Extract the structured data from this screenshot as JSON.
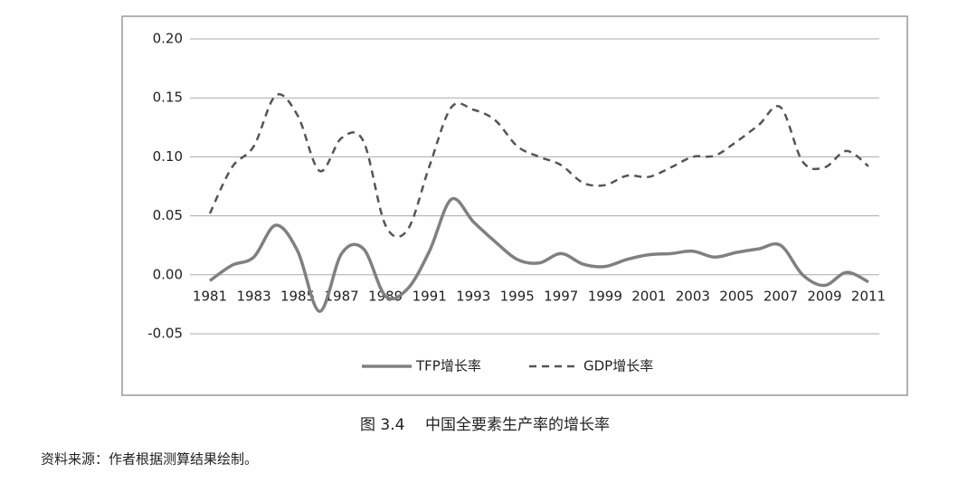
{
  "chart_data": {
    "type": "line",
    "figure_label": "图 3.4",
    "title": "中国全要素生产率的增长率",
    "source_note": "资料来源：作者根据测算结果绘制。",
    "categories": [
      "1981",
      null,
      "1983",
      null,
      "1985",
      null,
      "1987",
      null,
      "1989",
      null,
      "1991",
      null,
      "1993",
      null,
      "1995",
      null,
      "1997",
      null,
      "1999",
      null,
      "2001",
      null,
      "2003",
      null,
      "2005",
      null,
      "2007",
      null,
      "2009",
      null,
      "2011"
    ],
    "series": [
      {
        "name": "TFP增长率",
        "color": "#808080",
        "dash": "solid",
        "values": [
          -0.005,
          0.008,
          0.015,
          0.042,
          0.02,
          -0.031,
          0.018,
          0.022,
          -0.018,
          -0.012,
          0.02,
          0.064,
          0.045,
          0.028,
          0.013,
          0.01,
          0.018,
          0.009,
          0.007,
          0.013,
          0.017,
          0.018,
          0.02,
          0.015,
          0.019,
          0.022,
          0.025,
          0.0,
          -0.009,
          0.002,
          -0.006
        ]
      },
      {
        "name": "GDP增长率",
        "color": "#555555",
        "dash": "dashed",
        "values": [
          0.052,
          0.091,
          0.109,
          0.152,
          0.135,
          0.088,
          0.116,
          0.113,
          0.042,
          0.038,
          0.092,
          0.142,
          0.14,
          0.131,
          0.109,
          0.1,
          0.093,
          0.078,
          0.076,
          0.084,
          0.083,
          0.091,
          0.1,
          0.101,
          0.113,
          0.127,
          0.142,
          0.096,
          0.091,
          0.105,
          0.092
        ]
      }
    ],
    "ylim": [
      -0.05,
      0.2
    ],
    "yticks": [
      {
        "value": -0.05,
        "label": "-0.05"
      },
      {
        "value": 0,
        "label": "0.00"
      },
      0.05,
      {
        "value": 0.1,
        "label": "0.10"
      },
      0.15,
      {
        "value": 0.2,
        "label": "0.20"
      }
    ],
    "grid": true,
    "legend": "bottom"
  }
}
